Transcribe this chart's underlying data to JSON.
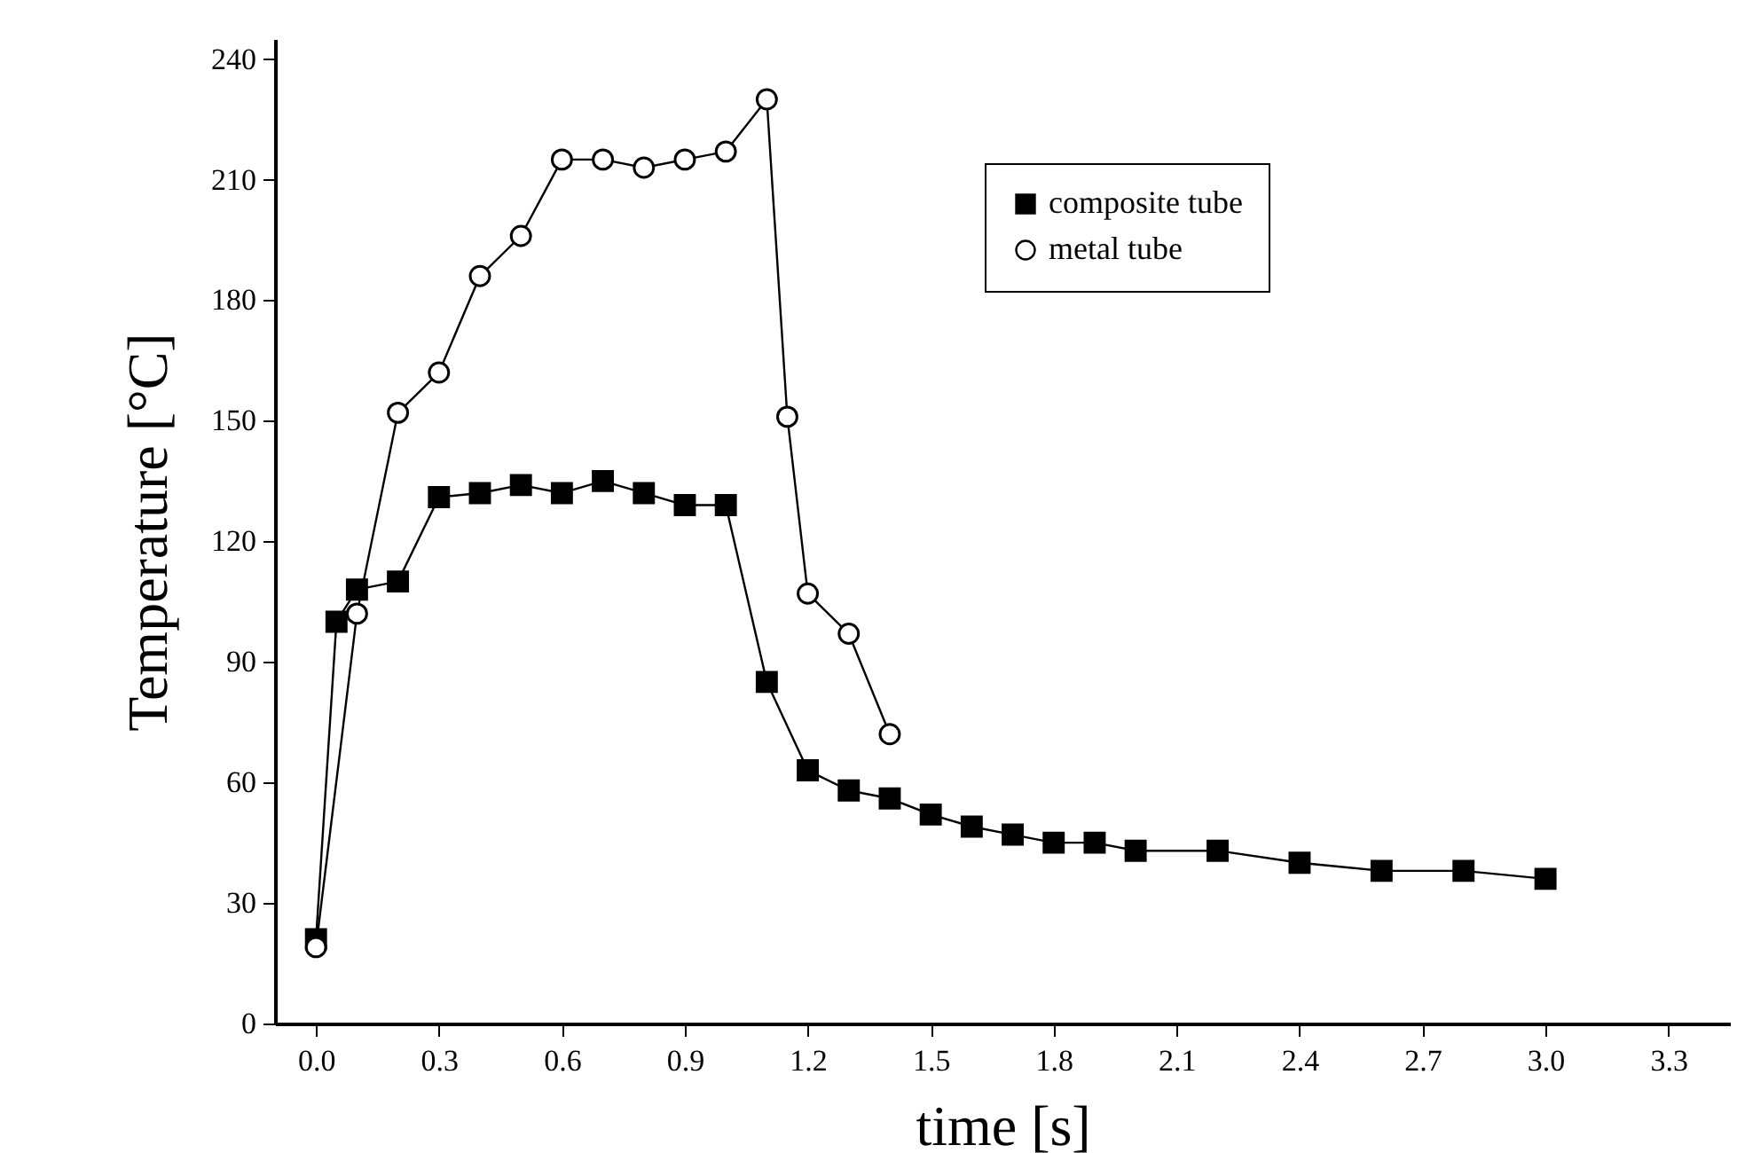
{
  "chart_data": {
    "type": "line",
    "xlabel": "time [s]",
    "ylabel": "Temperature [°C]",
    "xlim": [
      -0.1,
      3.45
    ],
    "ylim": [
      0,
      245
    ],
    "xticks": [
      {
        "value": 0,
        "label": "0.0"
      },
      0.3,
      0.6,
      0.9,
      1.2,
      1.5,
      1.8,
      2.1,
      2.4,
      2.7,
      {
        "value": 3,
        "label": "3.0"
      },
      3.3
    ],
    "yticks": [
      0,
      30,
      60,
      90,
      120,
      150,
      180,
      210,
      240
    ],
    "grid": false,
    "legend": "top right",
    "line_style": "solid",
    "series": [
      {
        "name": "composite tube",
        "color": "#000000",
        "marker": "square",
        "x": [
          0,
          0.05,
          0.1,
          0.2,
          0.3,
          0.4,
          0.5,
          0.6,
          0.7,
          0.8,
          0.9,
          1.0,
          1.1,
          1.2,
          1.3,
          1.4,
          1.5,
          1.6,
          1.7,
          1.8,
          1.9,
          2.0,
          2.2,
          2.4,
          2.6,
          2.8,
          3.0
        ],
        "values": [
          21,
          100,
          108,
          110,
          131,
          132,
          134,
          132,
          135,
          132,
          129,
          129,
          85,
          63,
          58,
          56,
          52,
          49,
          47,
          45,
          45,
          43,
          43,
          40,
          38,
          38,
          36
        ]
      },
      {
        "name": "metal tube",
        "color": "#000000",
        "marker": "circle",
        "x": [
          0,
          0.1,
          0.2,
          0.3,
          0.4,
          0.5,
          0.6,
          0.7,
          0.8,
          0.9,
          1.0,
          1.1,
          1.15,
          1.2,
          1.3,
          1.4
        ],
        "values": [
          19,
          102,
          152,
          162,
          186,
          196,
          215,
          215,
          213,
          215,
          217,
          230,
          151,
          107,
          97,
          72
        ]
      }
    ]
  }
}
